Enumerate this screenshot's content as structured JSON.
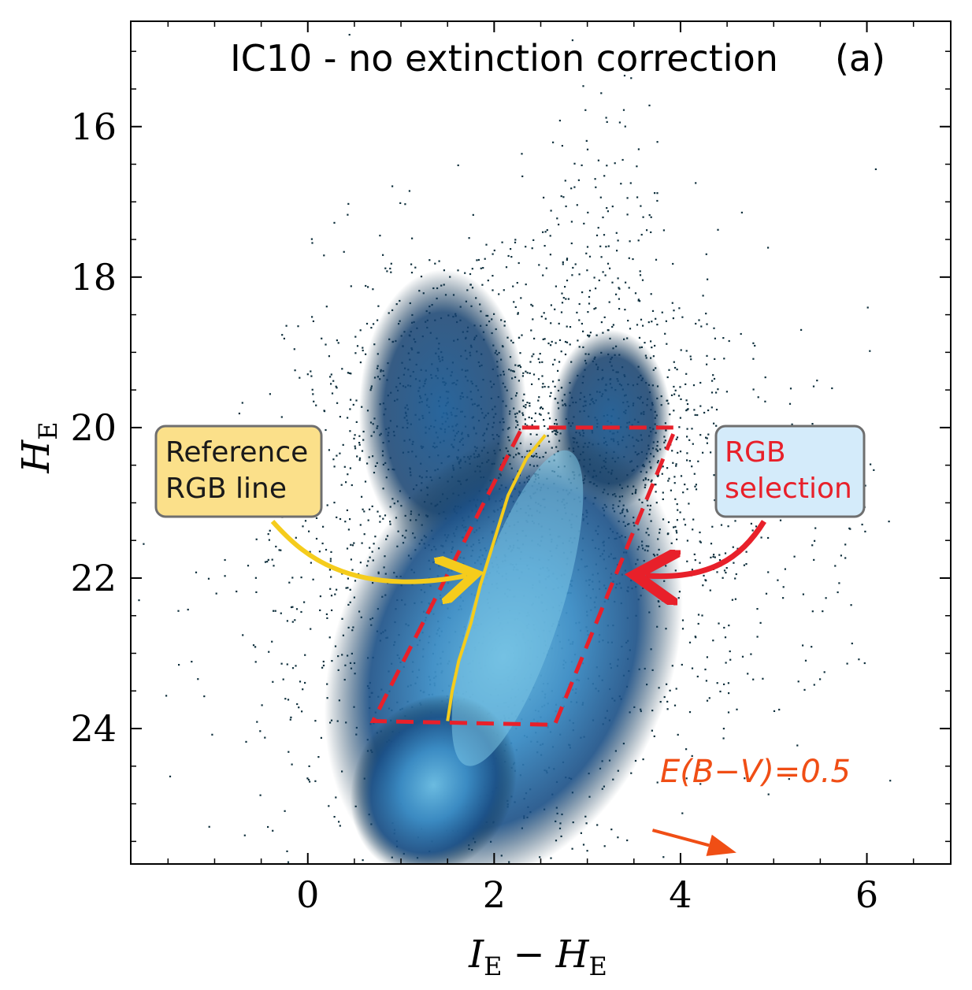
{
  "chart_data": {
    "type": "scatter",
    "title": "IC10 - no extinction correction",
    "panel_label": "(a)",
    "xlabel_main": "I",
    "xlabel_sub": "E",
    "xlabel_minus": "−",
    "xlabel_main2": "H",
    "xlabel_sub2": "E",
    "ylabel_main": "H",
    "ylabel_sub": "E",
    "xlim": [
      -1.9,
      6.9
    ],
    "ylim": [
      25.8,
      14.6
    ],
    "x_ticks": [
      0,
      2,
      4,
      6
    ],
    "x_tick_labels": [
      "0",
      "2",
      "4",
      "6"
    ],
    "y_ticks": [
      16,
      18,
      20,
      22,
      24
    ],
    "y_tick_labels": [
      "16",
      "18",
      "20",
      "22",
      "24"
    ],
    "density_regions": [
      {
        "name": "blue-plume",
        "x_range": [
          0.7,
          2.3
        ],
        "y_range": [
          18.0,
          21.5
        ]
      },
      {
        "name": "red-plume",
        "x_range": [
          2.7,
          3.8
        ],
        "y_range": [
          18.8,
          21.0
        ]
      },
      {
        "name": "rgb-body",
        "x_range": [
          0.5,
          3.7
        ],
        "y_range": [
          20.0,
          25.8
        ]
      }
    ],
    "rgb_selection_box": [
      [
        2.3,
        20.0
      ],
      [
        3.95,
        20.0
      ],
      [
        2.65,
        23.95
      ],
      [
        0.7,
        23.9
      ]
    ],
    "reference_rgb_line": [
      [
        2.55,
        20.1
      ],
      [
        2.35,
        20.4
      ],
      [
        2.15,
        20.9
      ],
      [
        2.0,
        21.5
      ],
      [
        1.85,
        22.1
      ],
      [
        1.75,
        22.6
      ],
      [
        1.62,
        23.1
      ],
      [
        1.55,
        23.5
      ],
      [
        1.5,
        23.9
      ]
    ],
    "annotations": {
      "reference_label_line1": "Reference",
      "reference_label_line2": "RGB line",
      "selection_label_line1": "RGB",
      "selection_label_line2": "selection",
      "reddening_label": "E(B−V)=0.5"
    },
    "reddening_vector": {
      "x": [
        3.7,
        4.6
      ],
      "y": [
        25.35,
        25.65
      ]
    },
    "colors": {
      "selection_box": "#e8202a",
      "reference_line": "#f5cc1c",
      "reddening": "#f04e15",
      "reference_box_fill": "#fbe08a",
      "selection_box_fill": "#d4ebfa",
      "density_low": "#0b2a3d",
      "density_mid": "#1f5f9a",
      "density_high": "#5fb0d8"
    }
  }
}
